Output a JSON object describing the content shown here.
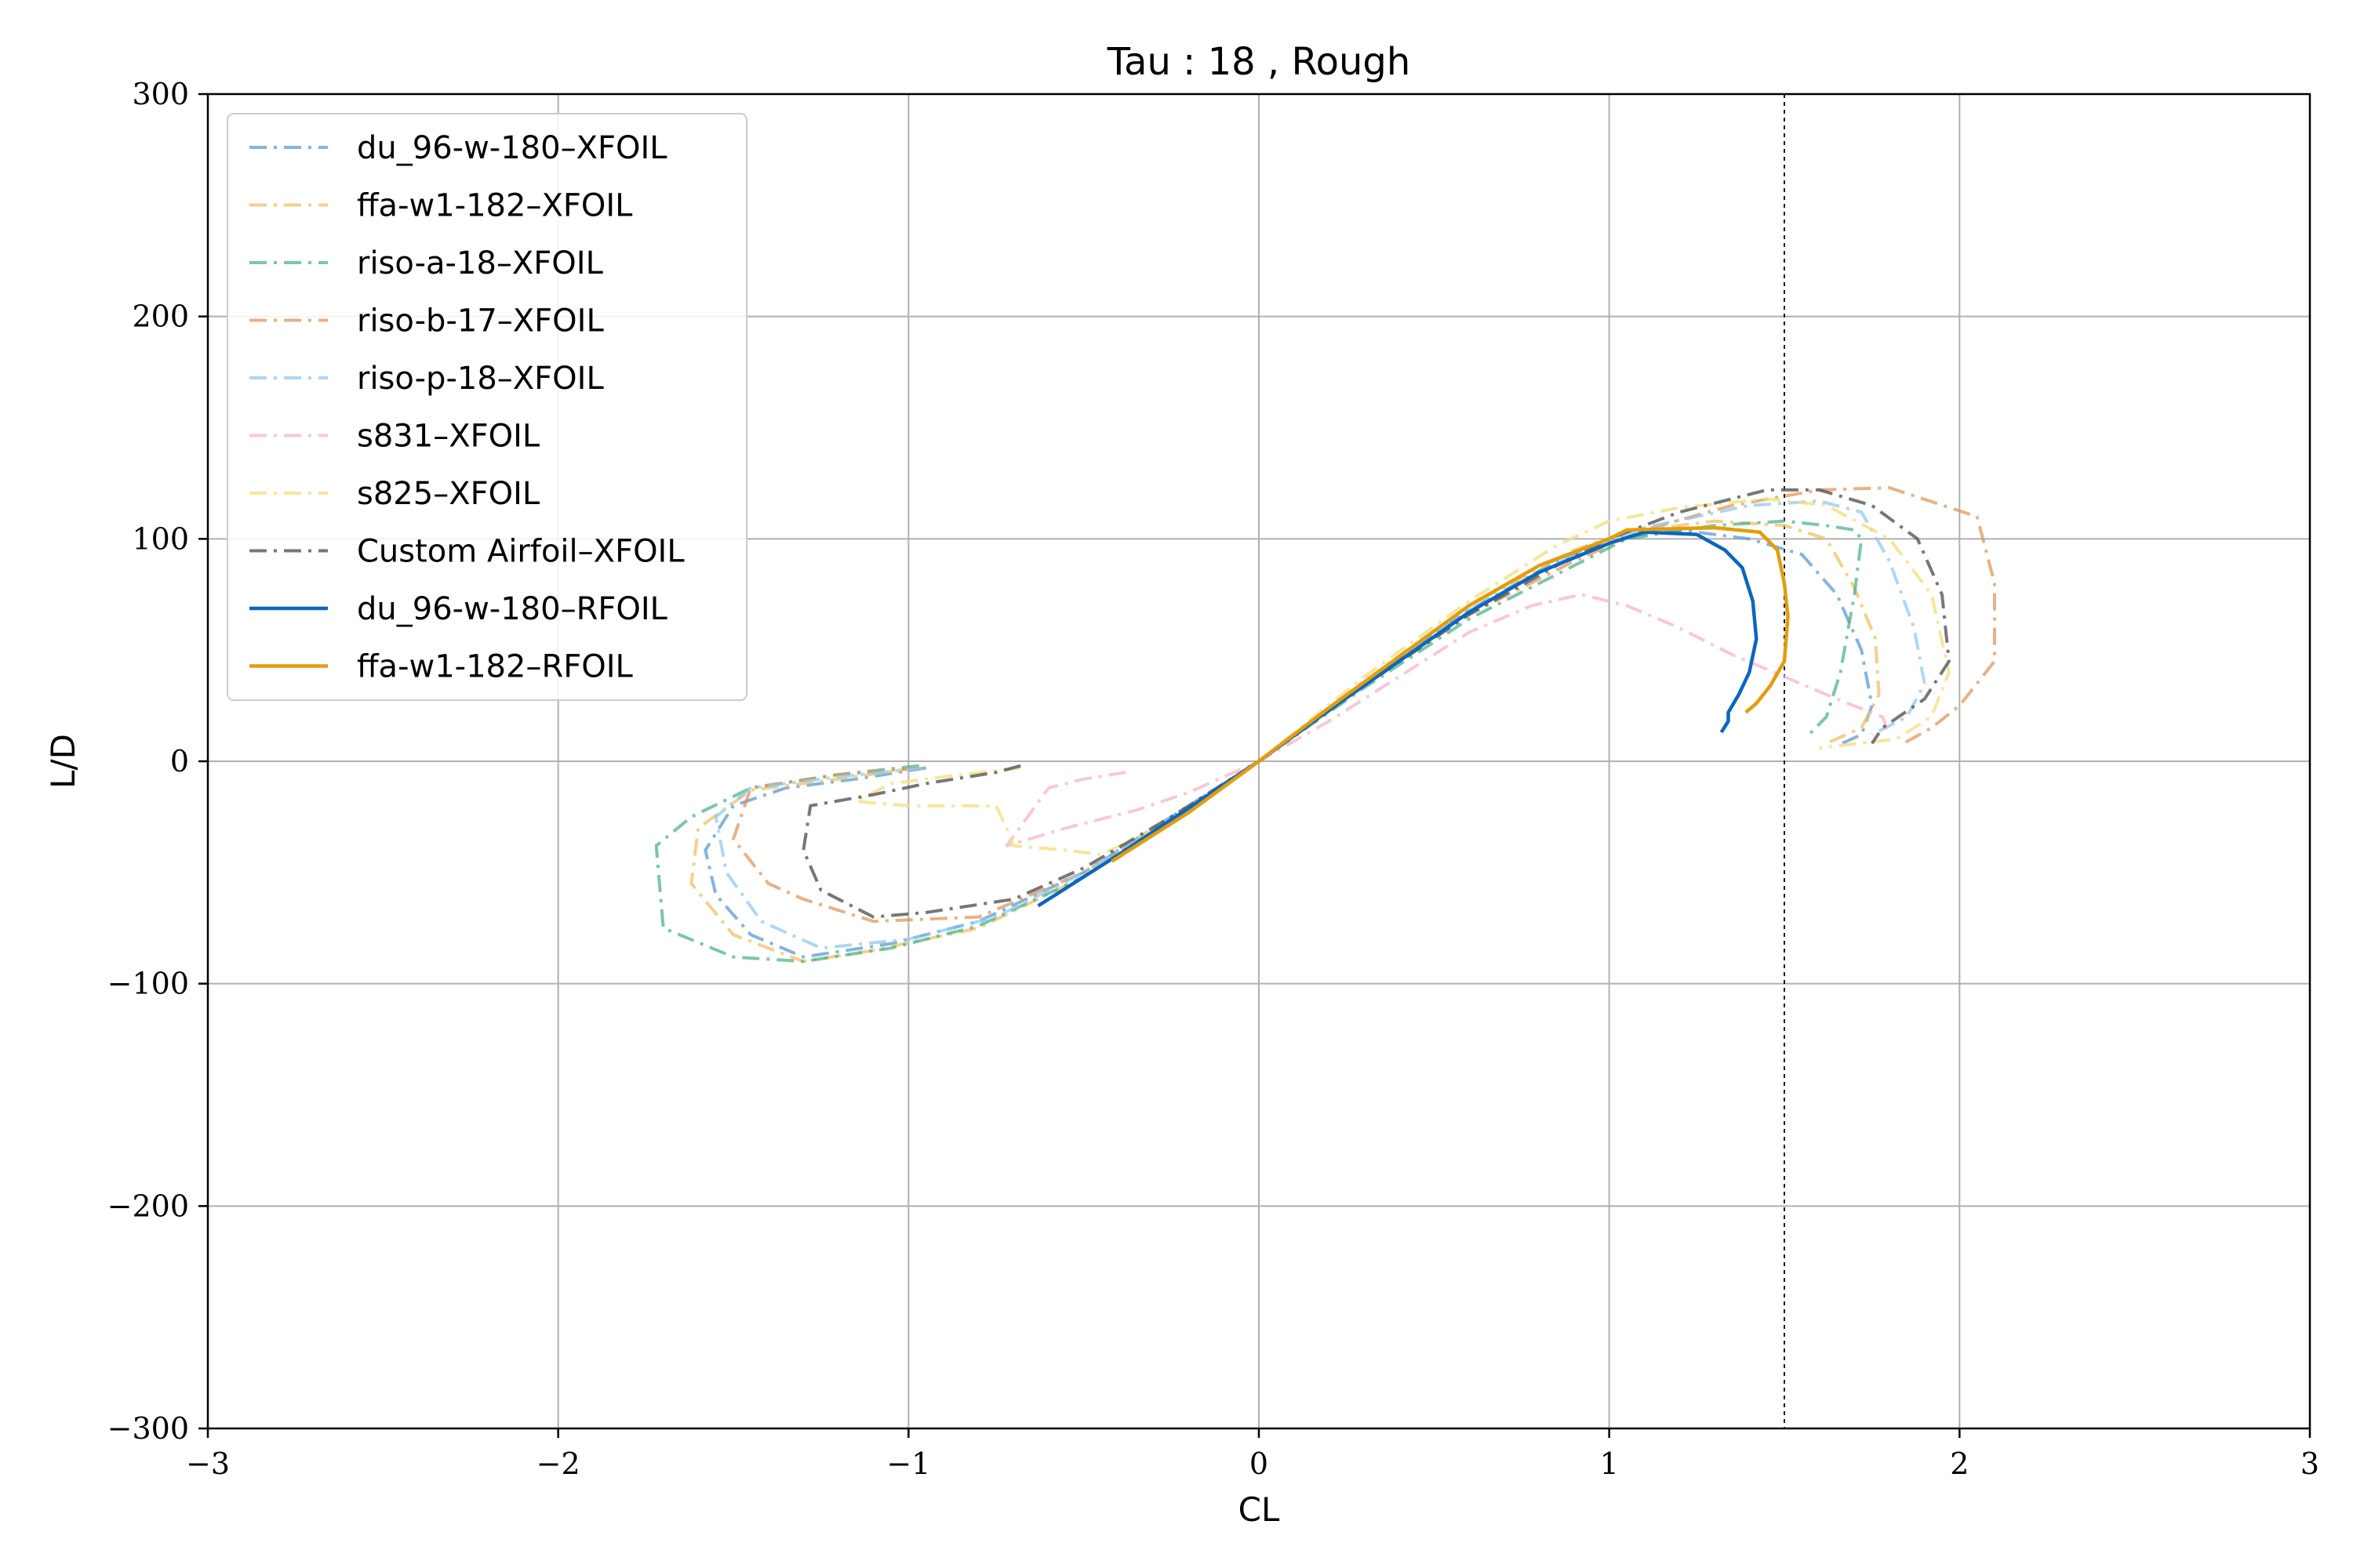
{
  "chart_data": {
    "type": "line",
    "title": "Tau : 18 , Rough",
    "xlabel": "CL",
    "ylabel": "L/D",
    "xlim": [
      -3,
      3
    ],
    "ylim": [
      -300,
      300
    ],
    "x_ticks": [
      -3,
      -2,
      -1,
      0,
      1,
      2,
      3
    ],
    "y_ticks": [
      -300,
      -200,
      -100,
      0,
      100,
      200,
      300
    ],
    "x_tick_labels": [
      "−3",
      "−2",
      "−1",
      "0",
      "1",
      "2",
      "3"
    ],
    "y_tick_labels": [
      "−300",
      "−200",
      "−100",
      "0",
      "100",
      "200",
      "300"
    ],
    "grid": true,
    "legend_position": "top-left",
    "reference_line": {
      "axis": "x",
      "value": 1.5,
      "style": "dashed",
      "color": "#000000"
    },
    "series": [
      {
        "name": "du_96-w-180–XFOIL",
        "style": "dashdot",
        "color": "#5b9bd5",
        "opacity": 0.75,
        "points": [
          [
            -0.95,
            -3
          ],
          [
            -1.15,
            -8
          ],
          [
            -1.35,
            -12
          ],
          [
            -1.5,
            -20
          ],
          [
            -1.58,
            -40
          ],
          [
            -1.55,
            -60
          ],
          [
            -1.45,
            -78
          ],
          [
            -1.3,
            -88
          ],
          [
            -1.05,
            -82
          ],
          [
            -0.8,
            -72
          ],
          [
            -0.5,
            -50
          ],
          [
            -0.25,
            -25
          ],
          [
            0,
            0
          ],
          [
            0.3,
            35
          ],
          [
            0.6,
            68
          ],
          [
            0.85,
            90
          ],
          [
            1.0,
            100
          ],
          [
            1.2,
            104
          ],
          [
            1.4,
            100
          ],
          [
            1.55,
            93
          ],
          [
            1.65,
            75
          ],
          [
            1.72,
            50
          ],
          [
            1.75,
            25
          ],
          [
            1.72,
            12
          ],
          [
            1.65,
            7
          ]
        ]
      },
      {
        "name": "ffa-w1-182–XFOIL",
        "style": "dashdot",
        "color": "#f0c060",
        "opacity": 0.75,
        "points": [
          [
            -0.98,
            -3
          ],
          [
            -1.2,
            -8
          ],
          [
            -1.45,
            -13
          ],
          [
            -1.6,
            -30
          ],
          [
            -1.62,
            -55
          ],
          [
            -1.5,
            -78
          ],
          [
            -1.3,
            -90
          ],
          [
            -1.1,
            -85
          ],
          [
            -0.8,
            -75
          ],
          [
            -0.5,
            -52
          ],
          [
            -0.25,
            -27
          ],
          [
            0,
            0
          ],
          [
            0.3,
            36
          ],
          [
            0.6,
            70
          ],
          [
            0.9,
            95
          ],
          [
            1.05,
            103
          ],
          [
            1.3,
            108
          ],
          [
            1.5,
            106
          ],
          [
            1.62,
            100
          ],
          [
            1.7,
            78
          ],
          [
            1.76,
            55
          ],
          [
            1.77,
            30
          ],
          [
            1.72,
            15
          ],
          [
            1.62,
            8
          ]
        ]
      },
      {
        "name": "riso-a-18–XFOIL",
        "style": "dashdot",
        "color": "#40b080",
        "opacity": 0.7,
        "points": [
          [
            -0.97,
            -2
          ],
          [
            -1.2,
            -6
          ],
          [
            -1.45,
            -12
          ],
          [
            -1.62,
            -25
          ],
          [
            -1.72,
            -38
          ],
          [
            -1.7,
            -75
          ],
          [
            -1.5,
            -88
          ],
          [
            -1.3,
            -90
          ],
          [
            -1.05,
            -84
          ],
          [
            -0.8,
            -74
          ],
          [
            -0.5,
            -52
          ],
          [
            -0.25,
            -26
          ],
          [
            0,
            0
          ],
          [
            0.3,
            33
          ],
          [
            0.6,
            64
          ],
          [
            0.9,
            88
          ],
          [
            1.05,
            100
          ],
          [
            1.3,
            106
          ],
          [
            1.5,
            108
          ],
          [
            1.62,
            106
          ],
          [
            1.7,
            104
          ],
          [
            1.72,
            100
          ],
          [
            1.7,
            75
          ],
          [
            1.66,
            40
          ],
          [
            1.62,
            20
          ],
          [
            1.57,
            12
          ]
        ]
      },
      {
        "name": "riso-b-17–XFOIL",
        "style": "dashdot",
        "color": "#e09050",
        "opacity": 0.7,
        "points": [
          [
            -0.97,
            -3
          ],
          [
            -1.2,
            -6
          ],
          [
            -1.45,
            -12
          ],
          [
            -1.5,
            -35
          ],
          [
            -1.4,
            -55
          ],
          [
            -1.3,
            -62
          ],
          [
            -1.1,
            -72
          ],
          [
            -0.8,
            -70
          ],
          [
            -0.5,
            -50
          ],
          [
            -0.25,
            -26
          ],
          [
            0,
            0
          ],
          [
            0.3,
            34
          ],
          [
            0.6,
            66
          ],
          [
            0.9,
            90
          ],
          [
            1.1,
            104
          ],
          [
            1.35,
            115
          ],
          [
            1.6,
            122
          ],
          [
            1.8,
            123
          ],
          [
            2.05,
            110
          ],
          [
            2.1,
            80
          ],
          [
            2.1,
            45
          ],
          [
            2.0,
            25
          ],
          [
            1.92,
            15
          ],
          [
            1.84,
            8
          ]
        ]
      },
      {
        "name": "riso-p-18–XFOIL",
        "style": "dashdot",
        "color": "#90caf0",
        "opacity": 0.75,
        "points": [
          [
            -0.96,
            -3
          ],
          [
            -1.2,
            -7
          ],
          [
            -1.45,
            -12
          ],
          [
            -1.55,
            -25
          ],
          [
            -1.52,
            -50
          ],
          [
            -1.42,
            -72
          ],
          [
            -1.25,
            -84
          ],
          [
            -1.0,
            -80
          ],
          [
            -0.75,
            -70
          ],
          [
            -0.5,
            -50
          ],
          [
            -0.25,
            -26
          ],
          [
            0,
            0
          ],
          [
            0.3,
            35
          ],
          [
            0.6,
            68
          ],
          [
            0.9,
            93
          ],
          [
            1.1,
            105
          ],
          [
            1.4,
            115
          ],
          [
            1.6,
            117
          ],
          [
            1.72,
            112
          ],
          [
            1.8,
            90
          ],
          [
            1.87,
            60
          ],
          [
            1.9,
            35
          ],
          [
            1.85,
            20
          ],
          [
            1.75,
            12
          ]
        ]
      },
      {
        "name": "s831–XFOIL",
        "style": "dashdot",
        "color": "#f5b5c8",
        "opacity": 0.75,
        "points": [
          [
            -0.38,
            -5
          ],
          [
            -0.5,
            -8
          ],
          [
            -0.6,
            -12
          ],
          [
            -0.72,
            -38
          ],
          [
            -0.55,
            -30
          ],
          [
            -0.35,
            -22
          ],
          [
            -0.2,
            -14
          ],
          [
            0,
            0
          ],
          [
            0.2,
            18
          ],
          [
            0.4,
            38
          ],
          [
            0.6,
            58
          ],
          [
            0.78,
            70
          ],
          [
            0.92,
            75
          ],
          [
            1.05,
            70
          ],
          [
            1.2,
            60
          ],
          [
            1.35,
            48
          ],
          [
            1.5,
            38
          ],
          [
            1.65,
            28
          ],
          [
            1.78,
            20
          ],
          [
            1.8,
            12
          ]
        ]
      },
      {
        "name": "s825–XFOIL",
        "style": "dashdot",
        "color": "#f5e080",
        "opacity": 0.8,
        "points": [
          [
            -0.68,
            -3
          ],
          [
            -0.85,
            -6
          ],
          [
            -1.05,
            -10
          ],
          [
            -1.15,
            -18
          ],
          [
            -1.0,
            -20
          ],
          [
            -0.75,
            -20
          ],
          [
            -0.72,
            -30
          ],
          [
            -0.7,
            -38
          ],
          [
            -0.55,
            -40
          ],
          [
            -0.45,
            -42
          ],
          [
            -0.25,
            -27
          ],
          [
            0,
            0
          ],
          [
            0.3,
            38
          ],
          [
            0.6,
            72
          ],
          [
            0.85,
            97
          ],
          [
            1.0,
            108
          ],
          [
            1.2,
            114
          ],
          [
            1.45,
            118
          ],
          [
            1.62,
            115
          ],
          [
            1.8,
            100
          ],
          [
            1.92,
            75
          ],
          [
            1.97,
            40
          ],
          [
            1.92,
            20
          ],
          [
            1.82,
            10
          ],
          [
            1.6,
            6
          ]
        ]
      },
      {
        "name": "Custom Airfoil–XFOIL",
        "style": "dashdot",
        "color": "#555555",
        "opacity": 0.8,
        "points": [
          [
            -0.68,
            -2
          ],
          [
            -0.75,
            -5
          ],
          [
            -0.95,
            -10
          ],
          [
            -1.1,
            -15
          ],
          [
            -1.28,
            -20
          ],
          [
            -1.3,
            -40
          ],
          [
            -1.25,
            -58
          ],
          [
            -1.1,
            -70
          ],
          [
            -0.95,
            -68
          ],
          [
            -0.7,
            -62
          ],
          [
            -0.5,
            -48
          ],
          [
            -0.25,
            -25
          ],
          [
            0,
            0
          ],
          [
            0.3,
            34
          ],
          [
            0.6,
            66
          ],
          [
            0.85,
            88
          ],
          [
            1.0,
            100
          ],
          [
            1.2,
            112
          ],
          [
            1.45,
            122
          ],
          [
            1.6,
            122
          ],
          [
            1.75,
            115
          ],
          [
            1.88,
            100
          ],
          [
            1.95,
            75
          ],
          [
            1.97,
            45
          ],
          [
            1.9,
            28
          ],
          [
            1.78,
            15
          ],
          [
            1.75,
            8
          ]
        ]
      },
      {
        "name": "du_96-w-180–RFOIL",
        "style": "solid",
        "color": "#0a66c2",
        "opacity": 1.0,
        "points": [
          [
            -0.63,
            -65
          ],
          [
            -0.4,
            -42
          ],
          [
            -0.2,
            -21
          ],
          [
            0,
            0
          ],
          [
            0.2,
            23
          ],
          [
            0.4,
            45
          ],
          [
            0.6,
            67
          ],
          [
            0.8,
            85
          ],
          [
            1.0,
            98
          ],
          [
            1.1,
            103
          ],
          [
            1.25,
            102
          ],
          [
            1.33,
            95
          ],
          [
            1.38,
            87
          ],
          [
            1.41,
            72
          ],
          [
            1.42,
            55
          ],
          [
            1.4,
            40
          ],
          [
            1.37,
            30
          ],
          [
            1.34,
            22
          ],
          [
            1.34,
            18
          ],
          [
            1.32,
            13
          ]
        ]
      },
      {
        "name": "ffa-w1-182–RFOIL",
        "style": "solid",
        "color": "#e39c0c",
        "opacity": 1.0,
        "points": [
          [
            -0.42,
            -45
          ],
          [
            -0.2,
            -23
          ],
          [
            0,
            0
          ],
          [
            0.2,
            24
          ],
          [
            0.4,
            47
          ],
          [
            0.6,
            70
          ],
          [
            0.8,
            88
          ],
          [
            1.0,
            100
          ],
          [
            1.05,
            104
          ],
          [
            1.3,
            105
          ],
          [
            1.43,
            103
          ],
          [
            1.48,
            95
          ],
          [
            1.5,
            80
          ],
          [
            1.51,
            65
          ],
          [
            1.5,
            45
          ],
          [
            1.46,
            34
          ],
          [
            1.42,
            26
          ],
          [
            1.39,
            22
          ]
        ]
      }
    ]
  }
}
